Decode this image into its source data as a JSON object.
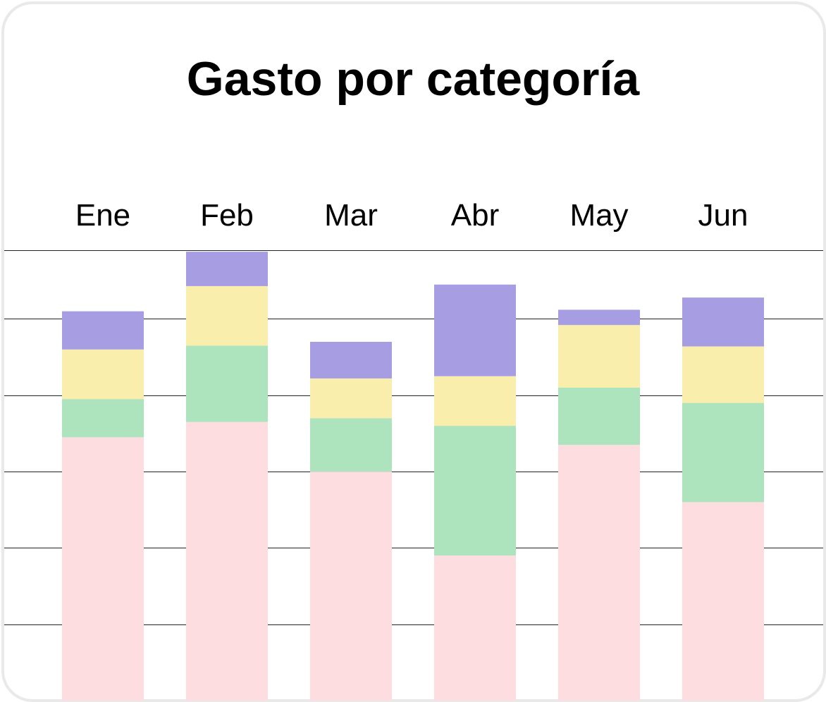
{
  "chart_data": {
    "type": "bar",
    "stacked": true,
    "title": "Gasto por categoría",
    "categories": [
      "Ene",
      "Feb",
      "Mar",
      "Abr",
      "May",
      "Jun"
    ],
    "series": [
      {
        "values": [
          345,
          365,
          300,
          190,
          335,
          260
        ],
        "color": "#fddde0"
      },
      {
        "values": [
          50,
          100,
          70,
          170,
          75,
          130
        ],
        "color": "#ade3bd"
      },
      {
        "values": [
          65,
          78,
          52,
          65,
          82,
          74
        ],
        "color": "#f9eeab"
      },
      {
        "values": [
          50,
          45,
          48,
          120,
          20,
          64
        ],
        "color": "#a69de2"
      }
    ],
    "ylim": [
      0,
      590
    ],
    "gridlines": [
      0,
      100,
      200,
      300,
      400,
      500,
      590
    ],
    "grid": true,
    "legend": false
  }
}
